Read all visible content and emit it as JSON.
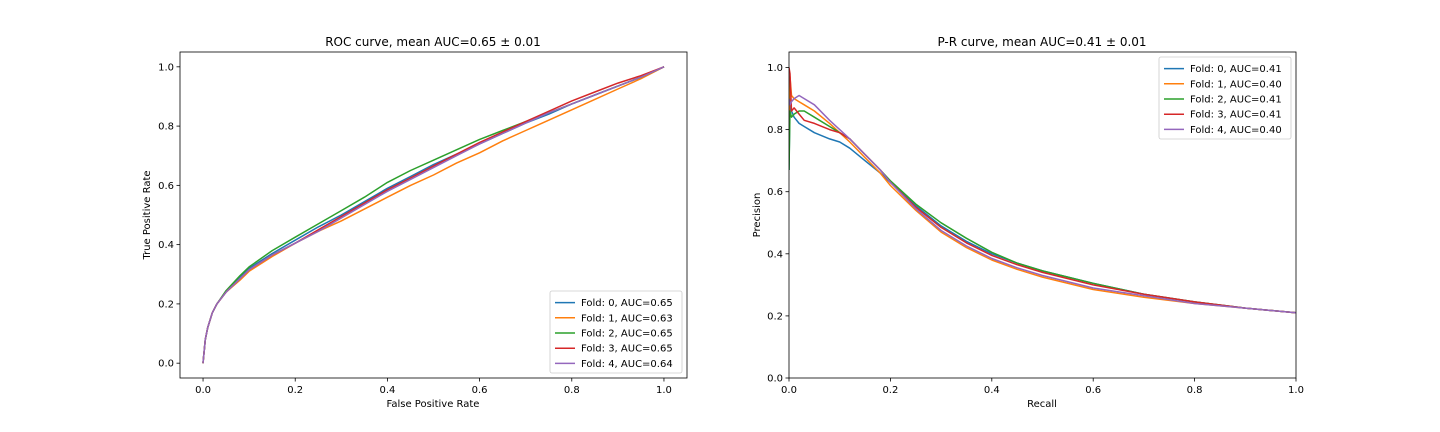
{
  "chart_data": [
    {
      "type": "line",
      "title": "ROC curve, mean AUC=0.65 ± 0.01",
      "xlabel": "False Positive Rate",
      "ylabel": "True Positive Rate",
      "xlim": [
        -0.05,
        1.05
      ],
      "ylim": [
        -0.05,
        1.05
      ],
      "xticks": [
        0.0,
        0.2,
        0.4,
        0.6,
        0.8,
        1.0
      ],
      "yticks": [
        0.0,
        0.2,
        0.4,
        0.6,
        0.8,
        1.0
      ],
      "tick_labels": [
        "0.0",
        "0.2",
        "0.4",
        "0.6",
        "0.8",
        "1.0"
      ],
      "grid": false,
      "legend_position": "bottom-right",
      "series": [
        {
          "name": "Fold: 0, AUC=0.65",
          "color": "#1f77b4",
          "x": [
            0,
            0.005,
            0.01,
            0.02,
            0.03,
            0.05,
            0.08,
            0.1,
            0.15,
            0.2,
            0.25,
            0.3,
            0.35,
            0.4,
            0.45,
            0.5,
            0.55,
            0.6,
            0.65,
            0.7,
            0.75,
            0.8,
            0.85,
            0.9,
            0.95,
            1.0
          ],
          "y": [
            0,
            0.08,
            0.12,
            0.17,
            0.2,
            0.24,
            0.29,
            0.32,
            0.37,
            0.415,
            0.46,
            0.5,
            0.545,
            0.59,
            0.63,
            0.67,
            0.705,
            0.74,
            0.775,
            0.81,
            0.84,
            0.875,
            0.905,
            0.935,
            0.965,
            1.0
          ]
        },
        {
          "name": "Fold: 1, AUC=0.63",
          "color": "#ff7f0e",
          "x": [
            0,
            0.005,
            0.01,
            0.02,
            0.03,
            0.05,
            0.08,
            0.1,
            0.15,
            0.2,
            0.25,
            0.3,
            0.35,
            0.4,
            0.45,
            0.5,
            0.55,
            0.6,
            0.65,
            0.7,
            0.75,
            0.8,
            0.85,
            0.9,
            0.95,
            1.0
          ],
          "y": [
            0,
            0.08,
            0.12,
            0.17,
            0.2,
            0.24,
            0.28,
            0.31,
            0.36,
            0.405,
            0.445,
            0.48,
            0.52,
            0.56,
            0.6,
            0.635,
            0.675,
            0.71,
            0.75,
            0.785,
            0.82,
            0.855,
            0.89,
            0.925,
            0.96,
            1.0
          ]
        },
        {
          "name": "Fold: 2, AUC=0.65",
          "color": "#2ca02c",
          "x": [
            0,
            0.005,
            0.01,
            0.02,
            0.03,
            0.05,
            0.08,
            0.1,
            0.15,
            0.2,
            0.25,
            0.3,
            0.35,
            0.4,
            0.45,
            0.5,
            0.55,
            0.6,
            0.65,
            0.7,
            0.75,
            0.8,
            0.85,
            0.9,
            0.95,
            1.0
          ],
          "y": [
            0,
            0.08,
            0.12,
            0.17,
            0.2,
            0.245,
            0.295,
            0.325,
            0.38,
            0.425,
            0.47,
            0.515,
            0.56,
            0.61,
            0.65,
            0.685,
            0.72,
            0.755,
            0.785,
            0.815,
            0.845,
            0.875,
            0.905,
            0.935,
            0.965,
            1.0
          ]
        },
        {
          "name": "Fold: 3, AUC=0.65",
          "color": "#d62728",
          "x": [
            0,
            0.005,
            0.01,
            0.02,
            0.03,
            0.05,
            0.08,
            0.1,
            0.15,
            0.2,
            0.25,
            0.3,
            0.35,
            0.4,
            0.45,
            0.5,
            0.55,
            0.6,
            0.65,
            0.7,
            0.75,
            0.8,
            0.85,
            0.9,
            0.95,
            1.0
          ],
          "y": [
            0,
            0.08,
            0.12,
            0.17,
            0.2,
            0.24,
            0.285,
            0.315,
            0.365,
            0.405,
            0.45,
            0.495,
            0.54,
            0.585,
            0.625,
            0.665,
            0.705,
            0.745,
            0.78,
            0.815,
            0.85,
            0.885,
            0.915,
            0.945,
            0.97,
            1.0
          ]
        },
        {
          "name": "Fold: 4, AUC=0.64",
          "color": "#9467bd",
          "x": [
            0,
            0.005,
            0.01,
            0.02,
            0.03,
            0.05,
            0.08,
            0.1,
            0.15,
            0.2,
            0.25,
            0.3,
            0.35,
            0.4,
            0.45,
            0.5,
            0.55,
            0.6,
            0.65,
            0.7,
            0.75,
            0.8,
            0.85,
            0.9,
            0.95,
            1.0
          ],
          "y": [
            0,
            0.08,
            0.12,
            0.17,
            0.2,
            0.24,
            0.285,
            0.315,
            0.365,
            0.405,
            0.445,
            0.49,
            0.535,
            0.58,
            0.62,
            0.66,
            0.7,
            0.74,
            0.775,
            0.81,
            0.845,
            0.875,
            0.905,
            0.935,
            0.965,
            1.0
          ]
        }
      ]
    },
    {
      "type": "line",
      "title": "P-R curve, mean AUC=0.41 ± 0.01",
      "xlabel": "Recall",
      "ylabel": "Precision",
      "xlim": [
        0.0,
        1.0
      ],
      "ylim": [
        0.0,
        1.05
      ],
      "xticks": [
        0.0,
        0.2,
        0.4,
        0.6,
        0.8,
        1.0
      ],
      "yticks": [
        0.0,
        0.2,
        0.4,
        0.6,
        0.8,
        1.0
      ],
      "tick_labels": [
        "0.0",
        "0.2",
        "0.4",
        "0.6",
        "0.8",
        "1.0"
      ],
      "grid": false,
      "legend_position": "top-right",
      "series": [
        {
          "name": "Fold: 0, AUC=0.41",
          "color": "#1f77b4",
          "x": [
            0,
            0.002,
            0.005,
            0.01,
            0.02,
            0.03,
            0.05,
            0.08,
            0.1,
            0.12,
            0.15,
            0.18,
            0.2,
            0.25,
            0.3,
            0.35,
            0.4,
            0.45,
            0.5,
            0.6,
            0.7,
            0.8,
            0.9,
            1.0
          ],
          "y": [
            0.67,
            0.9,
            0.86,
            0.84,
            0.82,
            0.81,
            0.79,
            0.77,
            0.76,
            0.74,
            0.7,
            0.66,
            0.63,
            0.555,
            0.49,
            0.44,
            0.4,
            0.37,
            0.345,
            0.305,
            0.27,
            0.245,
            0.225,
            0.21
          ]
        },
        {
          "name": "Fold: 1, AUC=0.40",
          "color": "#ff7f0e",
          "x": [
            0,
            0.002,
            0.005,
            0.01,
            0.02,
            0.03,
            0.05,
            0.08,
            0.1,
            0.12,
            0.15,
            0.18,
            0.2,
            0.25,
            0.3,
            0.35,
            0.4,
            0.45,
            0.5,
            0.6,
            0.7,
            0.8,
            0.9,
            1.0
          ],
          "y": [
            0.8,
            0.97,
            0.91,
            0.9,
            0.89,
            0.88,
            0.86,
            0.82,
            0.79,
            0.76,
            0.71,
            0.66,
            0.62,
            0.54,
            0.47,
            0.42,
            0.38,
            0.35,
            0.325,
            0.285,
            0.26,
            0.24,
            0.225,
            0.21
          ]
        },
        {
          "name": "Fold: 2, AUC=0.41",
          "color": "#2ca02c",
          "x": [
            0,
            0.002,
            0.005,
            0.01,
            0.02,
            0.03,
            0.05,
            0.08,
            0.1,
            0.12,
            0.15,
            0.18,
            0.2,
            0.25,
            0.3,
            0.35,
            0.4,
            0.45,
            0.5,
            0.6,
            0.7,
            0.8,
            0.9,
            1.0
          ],
          "y": [
            0.67,
            0.86,
            0.84,
            0.85,
            0.86,
            0.86,
            0.84,
            0.81,
            0.79,
            0.77,
            0.72,
            0.67,
            0.635,
            0.56,
            0.5,
            0.45,
            0.405,
            0.37,
            0.345,
            0.305,
            0.27,
            0.245,
            0.225,
            0.21
          ]
        },
        {
          "name": "Fold: 3, AUC=0.41",
          "color": "#d62728",
          "x": [
            0,
            0.002,
            0.005,
            0.01,
            0.02,
            0.03,
            0.05,
            0.08,
            0.1,
            0.12,
            0.15,
            0.18,
            0.2,
            0.25,
            0.3,
            0.35,
            0.4,
            0.45,
            0.5,
            0.6,
            0.7,
            0.8,
            0.9,
            1.0
          ],
          "y": [
            1.0,
            0.98,
            0.86,
            0.87,
            0.85,
            0.83,
            0.82,
            0.8,
            0.79,
            0.77,
            0.72,
            0.67,
            0.63,
            0.55,
            0.485,
            0.435,
            0.395,
            0.365,
            0.34,
            0.3,
            0.27,
            0.245,
            0.225,
            0.21
          ]
        },
        {
          "name": "Fold: 4, AUC=0.40",
          "color": "#9467bd",
          "x": [
            0,
            0.002,
            0.005,
            0.01,
            0.02,
            0.03,
            0.05,
            0.08,
            0.1,
            0.12,
            0.15,
            0.18,
            0.2,
            0.25,
            0.3,
            0.35,
            0.4,
            0.45,
            0.5,
            0.6,
            0.7,
            0.8,
            0.9,
            1.0
          ],
          "y": [
            0.9,
            0.88,
            0.89,
            0.9,
            0.91,
            0.9,
            0.88,
            0.83,
            0.8,
            0.77,
            0.72,
            0.67,
            0.63,
            0.545,
            0.475,
            0.425,
            0.385,
            0.355,
            0.33,
            0.29,
            0.265,
            0.24,
            0.225,
            0.21
          ]
        }
      ]
    }
  ]
}
